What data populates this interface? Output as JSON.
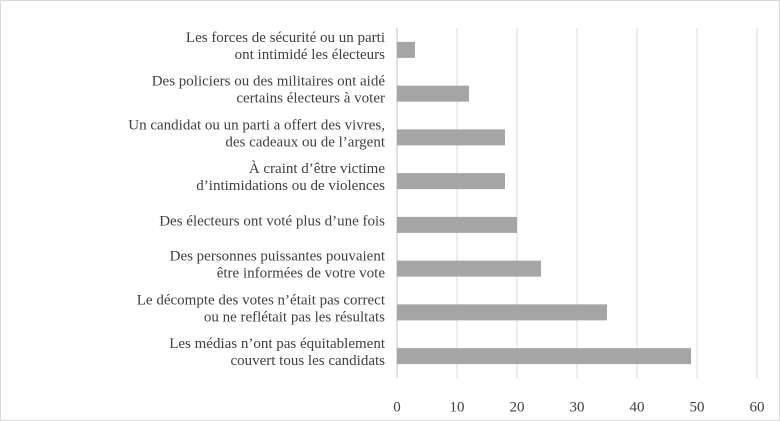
{
  "chart_data": {
    "type": "bar",
    "orientation": "horizontal",
    "categories": [
      [
        "Les forces de sécurité ou un parti",
        "ont intimidé les électeurs"
      ],
      [
        "Des policiers ou des militaires ont aidé",
        "certains électeurs à voter"
      ],
      [
        "Un candidat ou un parti a offert des vivres,",
        "des cadeaux ou de l’argent"
      ],
      [
        "À craint d’être victime",
        "d’intimidations ou de violences"
      ],
      [
        "Des électeurs ont voté plus d’une fois"
      ],
      [
        "Des personnes puissantes pouvaient",
        "être informées de votre vote"
      ],
      [
        "Le décompte des votes n’était pas correct",
        "ou ne reflétait pas les résultats"
      ],
      [
        "Les médias n’ont pas équitablement",
        "couvert tous les candidats"
      ]
    ],
    "values": [
      3,
      12,
      18,
      18,
      20,
      24,
      35,
      49
    ],
    "color": "#a5a5a5",
    "xlim": [
      0,
      60
    ],
    "xticks": [
      0,
      10,
      20,
      30,
      40,
      50,
      60
    ],
    "grid": true
  }
}
